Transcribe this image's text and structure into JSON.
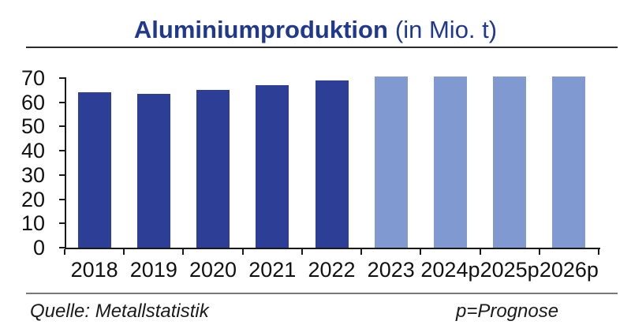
{
  "title": {
    "main": "Aluminiumproduktion",
    "suffix": "(in Mio. t)"
  },
  "footer": {
    "source": "Quelle: Metallstatistik",
    "legend": "p=Prognose"
  },
  "colors": {
    "actual_bar": "#2d3e96",
    "forecast_bar": "#8199d1",
    "title_text": "#20388e",
    "axis": "#1a1a1a",
    "title_rule": "#2b2b2b",
    "footer_rule": "#787878"
  },
  "chart_data": {
    "type": "bar",
    "title": "Aluminiumproduktion (in Mio. t)",
    "categories": [
      "2018",
      "2019",
      "2020",
      "2021",
      "2022",
      "2023",
      "2024p",
      "2025p",
      "2026p"
    ],
    "values": [
      64.3,
      63.5,
      65.3,
      67.0,
      69.0,
      70.6,
      70.6,
      70.6,
      70.6
    ],
    "bar_kind": [
      "actual",
      "actual",
      "actual",
      "actual",
      "actual",
      "forecast",
      "forecast",
      "forecast",
      "forecast"
    ],
    "y_ticks": [
      0,
      10,
      20,
      30,
      40,
      50,
      60,
      70
    ],
    "ylim": [
      0,
      71
    ],
    "xlabel": "",
    "ylabel": "",
    "grid": false,
    "legend_position": "none",
    "unit": "Mio. t"
  }
}
